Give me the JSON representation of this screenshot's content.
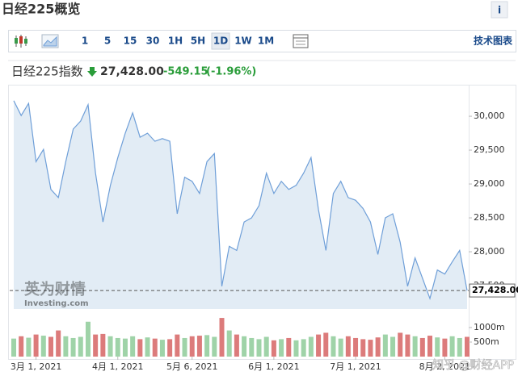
{
  "header": {
    "title": "日经225概览",
    "info": "i"
  },
  "toolbar": {
    "intervals": [
      "1",
      "5",
      "15",
      "30",
      "1H",
      "5H",
      "1D",
      "1W",
      "1M"
    ],
    "active": 6,
    "tech_chart": "技术图表"
  },
  "quote": {
    "name": "日经225指数",
    "price": "27,428.00",
    "change": "-549.15",
    "change_pct": "(-1.96%)"
  },
  "watermark": {
    "brand": "英为财情",
    "site": "Investing.com",
    "source": "知乎 @财经APP"
  },
  "chart_data": {
    "type": "area",
    "categories": [
      null,
      null,
      null,
      "3月 1, 2021",
      null,
      null,
      null,
      null,
      null,
      null,
      null,
      null,
      null,
      null,
      "4月 1, 2021",
      null,
      null,
      null,
      null,
      null,
      null,
      null,
      null,
      null,
      "5月 6, 2021",
      null,
      null,
      null,
      null,
      null,
      null,
      null,
      null,
      null,
      null,
      "6月 1, 2021",
      null,
      null,
      null,
      null,
      null,
      null,
      null,
      null,
      null,
      null,
      "7月 1, 2021",
      null,
      null,
      null,
      null,
      null,
      null,
      null,
      null,
      null,
      null,
      null,
      "8月 2, 2021",
      null,
      null,
      null
    ],
    "values": [
      30230,
      30010,
      30190,
      29330,
      29510,
      28920,
      28800,
      29330,
      29810,
      29930,
      30170,
      29160,
      28440,
      28980,
      29390,
      29750,
      30050,
      29690,
      29750,
      29630,
      29670,
      29630,
      28560,
      29100,
      29040,
      28860,
      29330,
      29450,
      27490,
      28080,
      28020,
      28440,
      28500,
      28680,
      29160,
      28860,
      29040,
      28920,
      28980,
      29160,
      29390,
      28620,
      28020,
      28860,
      29040,
      28800,
      28760,
      28640,
      28440,
      27960,
      28500,
      28560,
      28140,
      27490,
      27910,
      27610,
      27310,
      27730,
      27670,
      27850,
      28020,
      27428
    ],
    "color": "#6f9fd8",
    "fill": "#e2ecf5",
    "ylim": [
      27155,
      30370
    ],
    "yticks": [
      {
        "value": 27500,
        "label": "27,500"
      },
      {
        "value": 28000,
        "label": "28,000"
      },
      {
        "value": 28500,
        "label": "28,500"
      },
      {
        "value": 29000,
        "label": "29,000"
      },
      {
        "value": 29500,
        "label": "29,500"
      },
      {
        "value": 30000,
        "label": "30,000"
      }
    ],
    "volume": {
      "values": [
        620,
        700,
        650,
        760,
        720,
        680,
        900,
        700,
        640,
        680,
        1200,
        760,
        780,
        700,
        640,
        620,
        700,
        600,
        660,
        620,
        580,
        600,
        760,
        640,
        700,
        720,
        740,
        680,
        1330,
        900,
        760,
        700,
        640,
        600,
        680,
        560,
        600,
        640,
        560,
        600,
        680,
        760,
        820,
        700,
        620,
        700,
        640,
        600,
        580,
        660,
        760,
        680,
        820,
        760,
        700,
        640,
        720,
        660,
        620,
        700,
        640,
        680
      ],
      "up_color": "#9fd3a8",
      "down_color": "#dc7b7b",
      "ylim": [
        0,
        1360
      ],
      "yticks": [
        {
          "value": 500,
          "label": "500m"
        },
        {
          "value": 1000,
          "label": "1000m"
        }
      ]
    }
  }
}
